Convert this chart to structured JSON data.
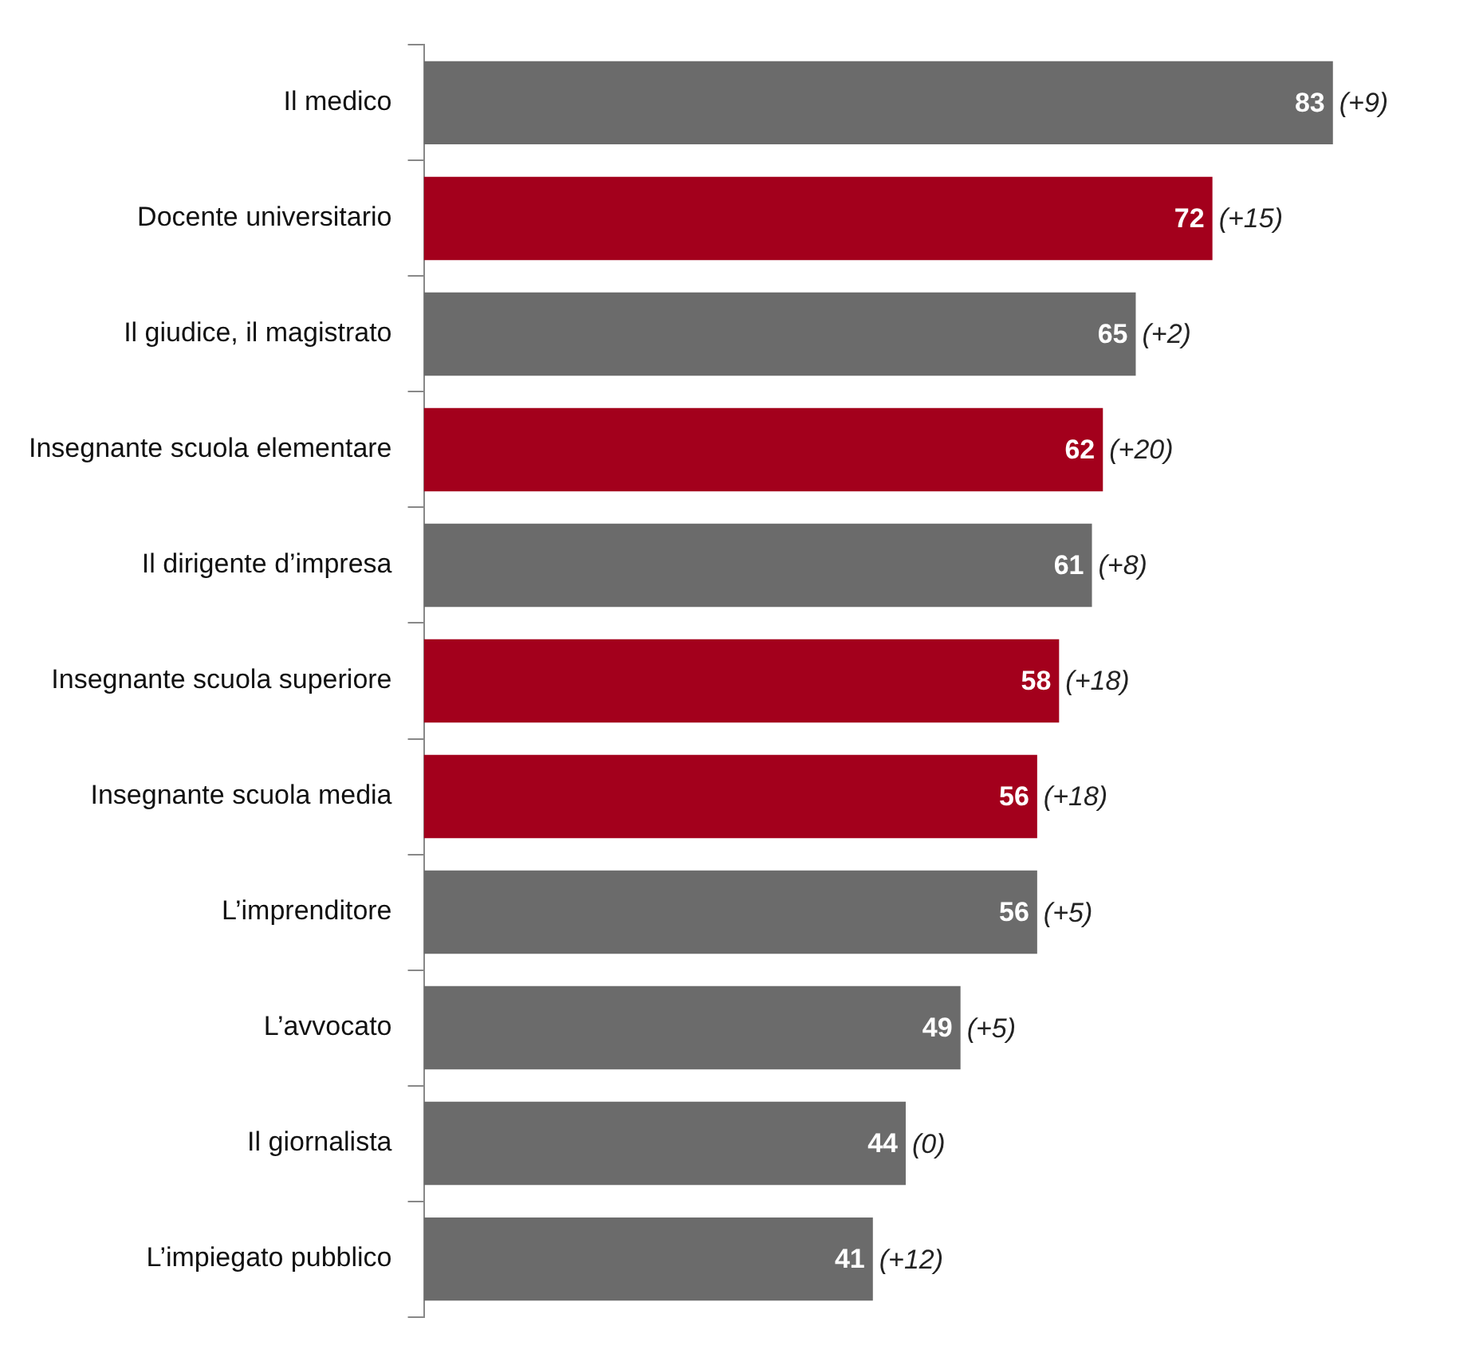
{
  "chart_data": {
    "type": "bar",
    "orientation": "horizontal",
    "categories": [
      "Il medico",
      "Docente universitario",
      "Il giudice, il magistrato",
      "Insegnante scuola elementare",
      "Il dirigente d’impresa",
      "Insegnante scuola superiore",
      "Insegnante scuola media",
      "L’imprenditore",
      "L’avvocato",
      "Il giornalista",
      "L’impiegato pubblico"
    ],
    "values": [
      83,
      72,
      65,
      62,
      61,
      58,
      56,
      56,
      49,
      44,
      41
    ],
    "colors": [
      "#6b6b6b",
      "#a3001c",
      "#6b6b6b",
      "#a3001c",
      "#6b6b6b",
      "#a3001c",
      "#a3001c",
      "#6b6b6b",
      "#6b6b6b",
      "#6b6b6b",
      "#6b6b6b"
    ],
    "data_labels": true,
    "grid": false,
    "legend": false,
    "annotations": [
      {
        "text": "(+9)",
        "x": 83,
        "y": "Il medico"
      },
      {
        "text": "(+15)",
        "x": 72,
        "y": "Docente universitario"
      },
      {
        "text": "(+2)",
        "x": 65,
        "y": "Il giudice, il magistrato"
      },
      {
        "text": "(+20)",
        "x": 62,
        "y": "Insegnante scuola elementare"
      },
      {
        "text": "(+8)",
        "x": 61,
        "y": "Il dirigente d’impresa"
      },
      {
        "text": "(+18)",
        "x": 58,
        "y": "Insegnante scuola superiore"
      },
      {
        "text": "(+18)",
        "x": 56,
        "y": "Insegnante scuola media"
      },
      {
        "text": "(+5)",
        "x": 56,
        "y": "L’imprenditore"
      },
      {
        "text": "(+5)",
        "x": 49,
        "y": "L’avvocato"
      },
      {
        "text": "(0)",
        "x": 44,
        "y": "Il giornalista"
      },
      {
        "text": "(+12)",
        "x": 41,
        "y": "L’impiegato pubblico"
      }
    ]
  }
}
